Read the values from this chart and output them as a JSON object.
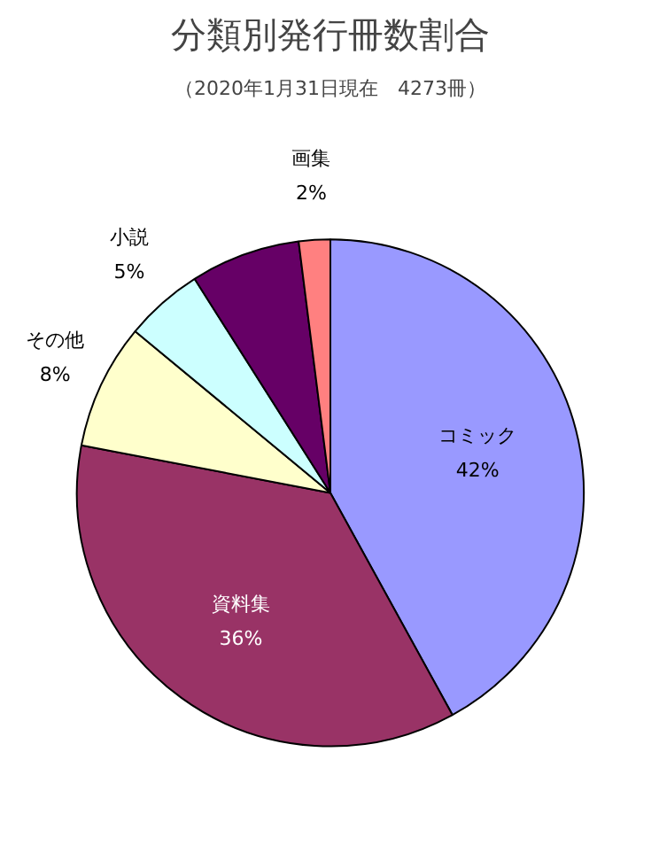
{
  "chart_data": {
    "type": "pie",
    "title": "分類別発行冊数割合",
    "subtitle": "（2020年1月31日現在　4273冊）",
    "categories": [
      "コミック",
      "資料集",
      "その他",
      "小説",
      null,
      "画集"
    ],
    "values": [
      42,
      36,
      8,
      5,
      7,
      2
    ],
    "colors": [
      "#9999ff",
      "#993366",
      "#ffffcc",
      "#ccffff",
      "#660066",
      "#ff8080"
    ],
    "value_labels": [
      "42%",
      "36%",
      "8%",
      "5%",
      null,
      "2%"
    ]
  }
}
